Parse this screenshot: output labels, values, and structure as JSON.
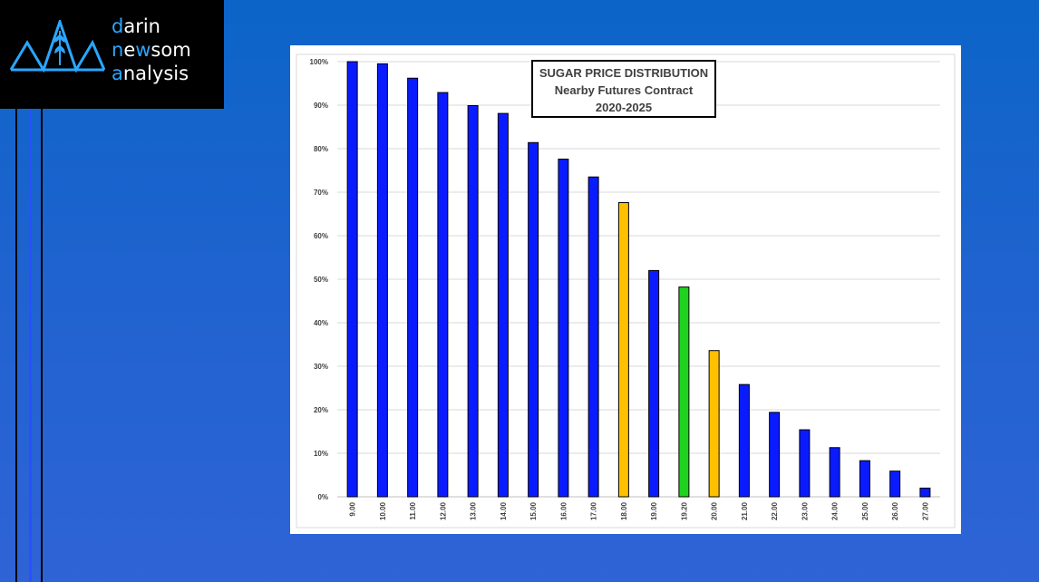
{
  "logo": {
    "line1_initial": "d",
    "line1_rest": "arin",
    "line2_initial": "n",
    "line2_mid": "e",
    "line2_hl": "w",
    "line2_rest": "som",
    "line3_initial": "a",
    "line3_rest": "nalysis",
    "icon": "wheat-mountains-logo"
  },
  "colors": {
    "blue_bar": "#0a1cff",
    "orange_bar": "#ffc000",
    "green_bar": "#1fd21f",
    "accent": "#2aa7ff"
  },
  "chart_data": {
    "type": "bar",
    "title": [
      "SUGAR PRICE DISTRIBUTION",
      "Nearby Futures Contract",
      "2020-2025"
    ],
    "categories": [
      "9.00",
      "10.00",
      "11.00",
      "12.00",
      "13.00",
      "14.00",
      "15.00",
      "16.00",
      "17.00",
      "18.00",
      "19.00",
      "19.20",
      "20.00",
      "21.00",
      "22.00",
      "23.00",
      "24.00",
      "25.00",
      "26.00",
      "27.00"
    ],
    "values": [
      100,
      99.5,
      96.2,
      92.9,
      89.9,
      88.1,
      81.4,
      77.6,
      73.5,
      67.6,
      52.0,
      48.2,
      33.6,
      25.8,
      19.4,
      15.4,
      11.3,
      8.3,
      5.9,
      2.0
    ],
    "bar_colors": [
      "blue",
      "blue",
      "blue",
      "blue",
      "blue",
      "blue",
      "blue",
      "blue",
      "blue",
      "orange",
      "blue",
      "green",
      "orange",
      "blue",
      "blue",
      "blue",
      "blue",
      "blue",
      "blue",
      "blue"
    ],
    "ylim": [
      0,
      100
    ],
    "yticks": [
      "0%",
      "10%",
      "20%",
      "30%",
      "40%",
      "50%",
      "60%",
      "70%",
      "80%",
      "90%",
      "100%"
    ],
    "grid": true,
    "xlabel": "",
    "ylabel": ""
  }
}
